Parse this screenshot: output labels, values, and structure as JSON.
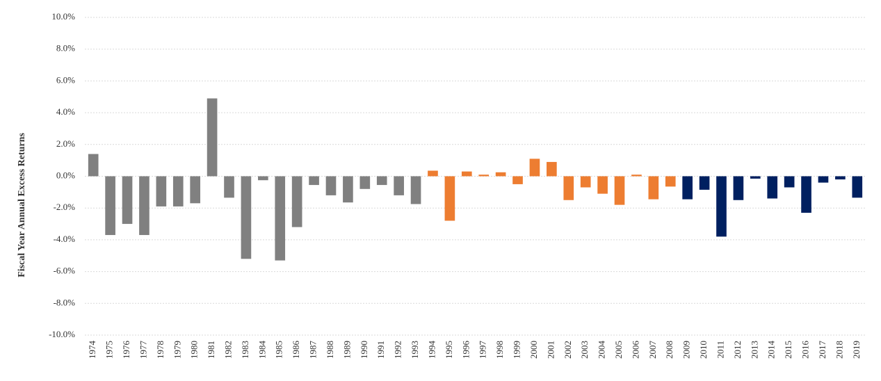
{
  "chart_data": {
    "type": "bar",
    "y_label": "Fiscal Year Annual  Excess Returns",
    "categories": [
      "1974",
      "1975",
      "1976",
      "1977",
      "1978",
      "1979",
      "1980",
      "1981",
      "1982",
      "1983",
      "1984",
      "1985",
      "1986",
      "1987",
      "1988",
      "1989",
      "1990",
      "1991",
      "1992",
      "1993",
      "1994",
      "1995",
      "1996",
      "1997",
      "1998",
      "1999",
      "2000",
      "2001",
      "2002",
      "2003",
      "2004",
      "2005",
      "2006",
      "2007",
      "2008",
      "2009",
      "2010",
      "2011",
      "2012",
      "2013",
      "2014",
      "2015",
      "2016",
      "2017",
      "2018",
      "2019"
    ],
    "values": [
      1.4,
      -3.7,
      -3.0,
      -3.7,
      -1.9,
      -1.9,
      -1.7,
      4.9,
      -1.35,
      -5.2,
      -0.25,
      -5.3,
      -3.2,
      -0.55,
      -1.2,
      -1.65,
      -0.8,
      -0.55,
      -1.2,
      -1.75,
      0.35,
      -2.8,
      0.3,
      0.1,
      0.25,
      -0.5,
      1.1,
      0.9,
      -1.5,
      -0.7,
      -1.1,
      -1.8,
      0.1,
      -1.45,
      -0.65,
      -1.45,
      -0.85,
      -3.8,
      -1.5,
      -0.15,
      -1.4,
      -0.7,
      -2.3,
      -0.4,
      -0.2,
      -1.35
    ],
    "colors": [
      "#808080",
      "#808080",
      "#808080",
      "#808080",
      "#808080",
      "#808080",
      "#808080",
      "#808080",
      "#808080",
      "#808080",
      "#808080",
      "#808080",
      "#808080",
      "#808080",
      "#808080",
      "#808080",
      "#808080",
      "#808080",
      "#808080",
      "#808080",
      "#ed7d31",
      "#ed7d31",
      "#ed7d31",
      "#ed7d31",
      "#ed7d31",
      "#ed7d31",
      "#ed7d31",
      "#ed7d31",
      "#ed7d31",
      "#ed7d31",
      "#ed7d31",
      "#ed7d31",
      "#ed7d31",
      "#ed7d31",
      "#ed7d31",
      "#002060",
      "#002060",
      "#002060",
      "#002060",
      "#002060",
      "#002060",
      "#002060",
      "#002060",
      "#002060",
      "#002060",
      "#002060"
    ],
    "ylim": [
      -10,
      10
    ],
    "yticks": [
      {
        "value": -10,
        "label": "-10.0%"
      },
      {
        "value": -8,
        "label": "-8.0%"
      },
      {
        "value": -6,
        "label": "-6.0%"
      },
      {
        "value": -4,
        "label": "-4.0%"
      },
      {
        "value": -2,
        "label": "-2.0%"
      },
      {
        "value": 0,
        "label": "0.0%"
      },
      {
        "value": 2,
        "label": "2.0%"
      },
      {
        "value": 4,
        "label": "4.0%"
      },
      {
        "value": 6,
        "label": "6.0%"
      },
      {
        "value": 8,
        "label": "8.0%"
      },
      {
        "value": 10,
        "label": "10.0%"
      }
    ],
    "grid": true
  }
}
